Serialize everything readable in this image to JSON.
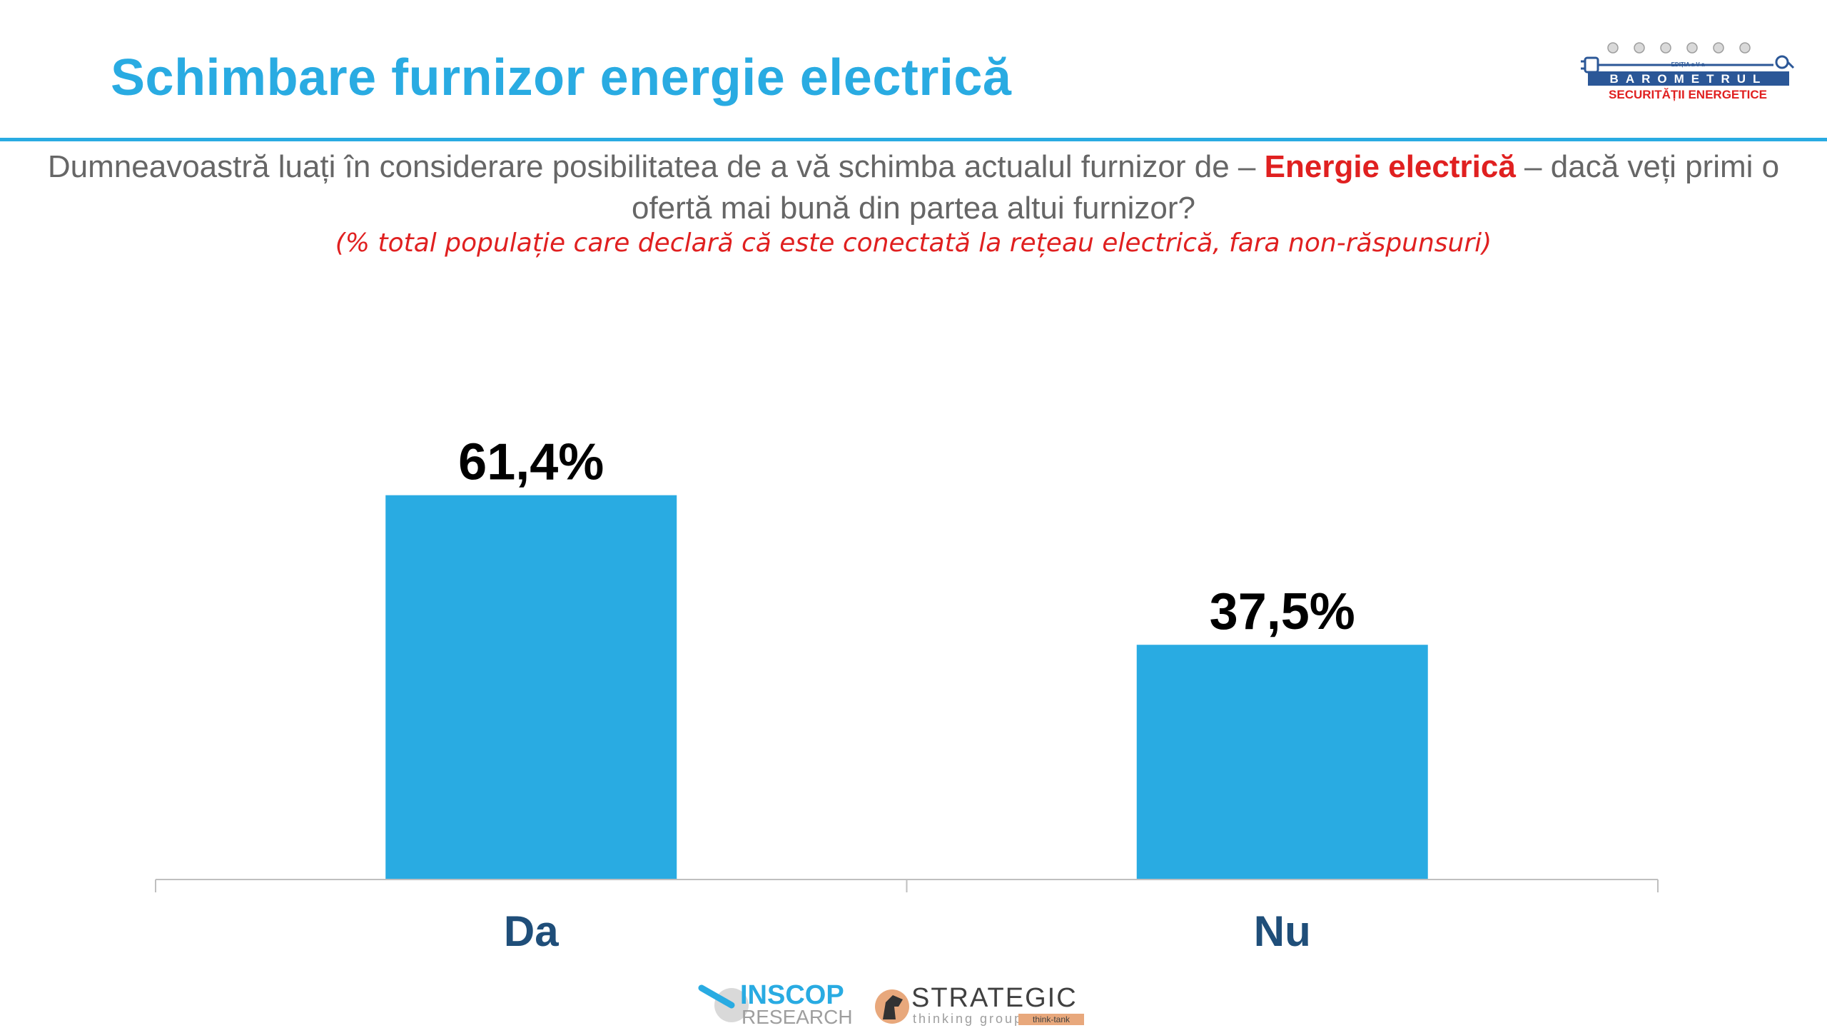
{
  "header": {
    "title": "Schimbare furnizor energie electrică",
    "logo": {
      "edition": "EDIȚIA a V-a",
      "name": "BAROMETRUL",
      "subtitle": "SECURITĂȚII ENERGETICE"
    }
  },
  "question": {
    "before": "Dumneavoastră luați în considerare posibilitatea de a vă schimba actualul furnizor de – ",
    "highlight": "Energie electrică",
    "after": " – dacă veți primi o ofertă mai bună din partea altui furnizor?",
    "note": "(% total populație care declară că este conectată la rețeau electrică, fara non-răspunsuri)"
  },
  "chart_data": {
    "type": "bar",
    "categories": [
      "Da",
      "Nu"
    ],
    "values": [
      61.4,
      37.5
    ],
    "value_labels": [
      "61,4%",
      "37,5%"
    ],
    "title": "",
    "xlabel": "",
    "ylabel": "",
    "ylim": [
      0,
      100
    ],
    "grid": false,
    "colors": {
      "bar": "#29abe2",
      "category": "#1f4e79",
      "value_label": "#000000",
      "axis": "#bfbfbf"
    }
  },
  "footer": {
    "inscop": {
      "name": "INSCOP",
      "sub": "RESEARCH"
    },
    "strategic": {
      "name": "STRATEGIC",
      "sub": "thinking group",
      "badge": "think-tank"
    }
  }
}
